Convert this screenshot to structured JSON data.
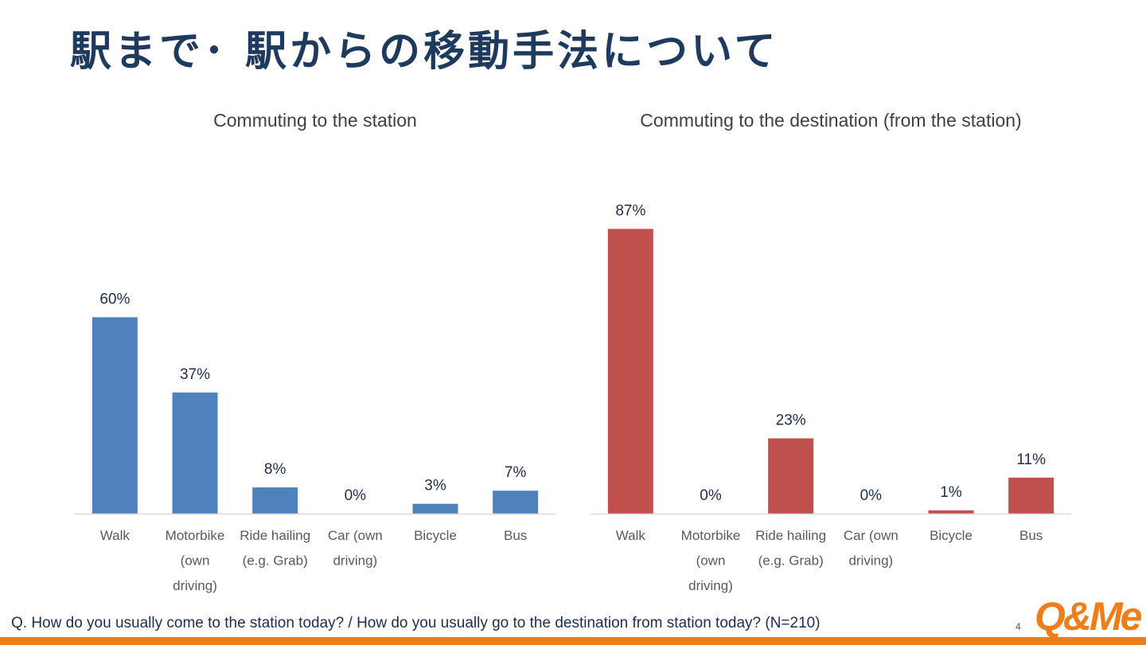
{
  "slide": {
    "title": "駅まで･ 駅からの移動手法について",
    "footnote": "Q. How do you usually come to the station today? / How do you usually go to the destination from station today? (N=210)",
    "page_number": "4",
    "logo_text": "Q&Me",
    "logo_color": "#ef7d1a",
    "stripe_color": "#ef7d1a"
  },
  "chart_data": [
    {
      "type": "bar",
      "title": "Commuting to the station",
      "categories": [
        "Walk",
        "Motorbike (own driving)",
        "Ride hailing (e.g. Grab)",
        "Car (own driving)",
        "Bicycle",
        "Bus"
      ],
      "category_lines": [
        [
          "Walk"
        ],
        [
          "Motorbike",
          "(own",
          "driving)"
        ],
        [
          "Ride hailing",
          "(e.g. Grab)"
        ],
        [
          "Car (own",
          "driving)"
        ],
        [
          "Bicycle"
        ],
        [
          "Bus"
        ]
      ],
      "values": [
        60,
        37,
        8,
        0,
        3,
        7
      ],
      "data_labels": [
        "60%",
        "37%",
        "8%",
        "0%",
        "3%",
        "7%"
      ],
      "unit": "%",
      "color": "#4f81bd",
      "ylim": [
        0,
        100
      ],
      "grid": false
    },
    {
      "type": "bar",
      "title": "Commuting to the destination (from the station)",
      "categories": [
        "Walk",
        "Motorbike (own driving)",
        "Ride hailing (e.g. Grab)",
        "Car (own driving)",
        "Bicycle",
        "Bus"
      ],
      "category_lines": [
        [
          "Walk"
        ],
        [
          "Motorbike",
          "(own",
          "driving)"
        ],
        [
          "Ride hailing",
          "(e.g. Grab)"
        ],
        [
          "Car (own",
          "driving)"
        ],
        [
          "Bicycle"
        ],
        [
          "Bus"
        ]
      ],
      "values": [
        87,
        0,
        23,
        0,
        1,
        11
      ],
      "data_labels": [
        "87%",
        "0%",
        "23%",
        "0%",
        "1%",
        "11%"
      ],
      "unit": "%",
      "color": "#c0504d",
      "ylim": [
        0,
        100
      ],
      "grid": false
    }
  ]
}
